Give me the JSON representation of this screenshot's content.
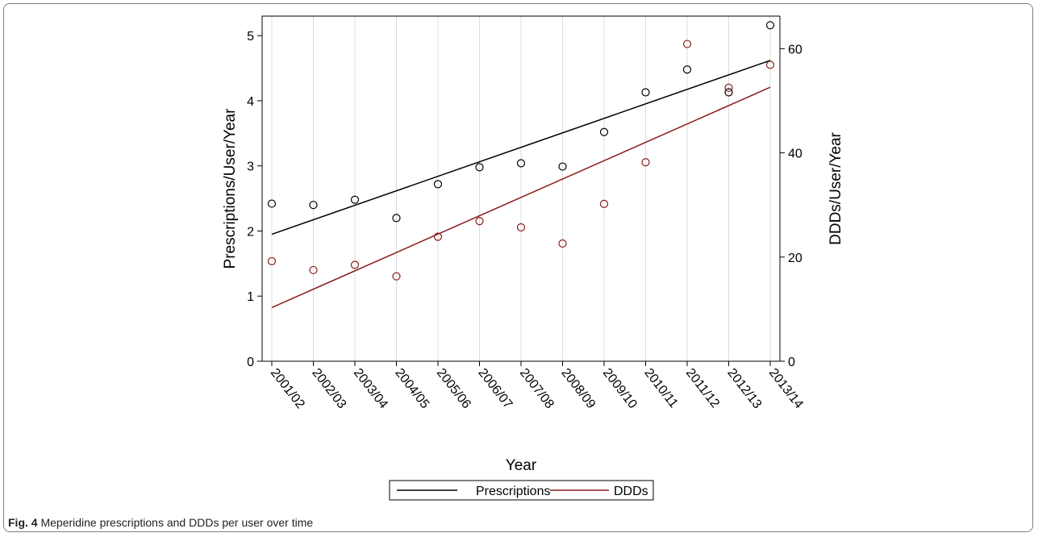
{
  "caption": {
    "label": "Fig. 4",
    "text": "Meperidine prescriptions and DDDs per user over time"
  },
  "colors": {
    "prescriptions": "#000000",
    "ddds": "#8b1a1a"
  },
  "chart_data": {
    "type": "scatter",
    "title": "",
    "xlabel": "Year",
    "ylabel": "Prescriptions/User/Year",
    "y2label": "DDDs/User/Year",
    "categories": [
      "2001/02",
      "2002/03",
      "2003/04",
      "2004/05",
      "2005/06",
      "2006/07",
      "2007/08",
      "2008/09",
      "2009/10",
      "2010/11",
      "2011/12",
      "2012/13",
      "2013/14"
    ],
    "ylim": [
      0,
      5.3
    ],
    "yticks": [
      0,
      1,
      2,
      3,
      4,
      5
    ],
    "y2lim": [
      0,
      66.25
    ],
    "y2ticks": [
      0,
      20,
      40,
      60
    ],
    "grid": "vertical",
    "legend_position": "bottom",
    "series": [
      {
        "name": "Prescriptions",
        "axis": "left",
        "values": [
          2.42,
          2.4,
          2.48,
          2.2,
          2.72,
          2.98,
          3.04,
          2.99,
          3.52,
          4.13,
          4.48,
          4.13,
          5.16
        ],
        "trend": [
          1.95,
          4.62
        ]
      },
      {
        "name": "DDDs",
        "axis": "right",
        "values": [
          19.2,
          17.5,
          18.5,
          16.3,
          23.9,
          26.9,
          25.7,
          22.6,
          30.2,
          38.2,
          60.9,
          52.5,
          56.9
        ],
        "trend": [
          10.3,
          52.6
        ]
      }
    ]
  }
}
